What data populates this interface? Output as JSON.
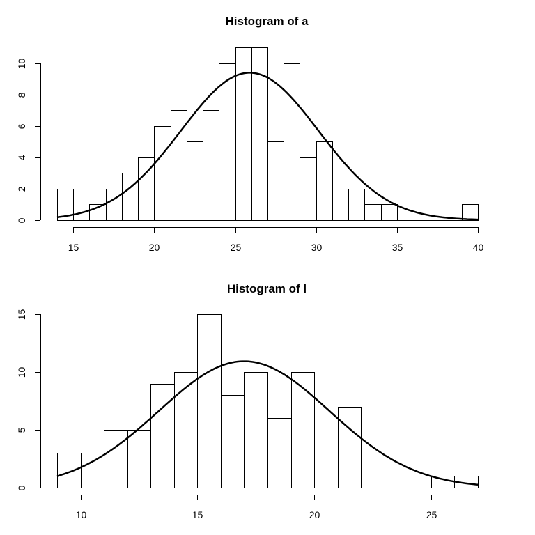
{
  "chart_data": [
    {
      "type": "histogram",
      "title": "Histogram of a",
      "xlabel": "",
      "ylabel": "",
      "bin_width": 1,
      "bins": [
        {
          "x0": 14,
          "x1": 15,
          "count": 2
        },
        {
          "x0": 15,
          "x1": 16,
          "count": 0
        },
        {
          "x0": 16,
          "x1": 17,
          "count": 1
        },
        {
          "x0": 17,
          "x1": 18,
          "count": 2
        },
        {
          "x0": 18,
          "x1": 19,
          "count": 3
        },
        {
          "x0": 19,
          "x1": 20,
          "count": 4
        },
        {
          "x0": 20,
          "x1": 21,
          "count": 6
        },
        {
          "x0": 21,
          "x1": 22,
          "count": 7
        },
        {
          "x0": 22,
          "x1": 23,
          "count": 5
        },
        {
          "x0": 23,
          "x1": 24,
          "count": 7
        },
        {
          "x0": 24,
          "x1": 25,
          "count": 10
        },
        {
          "x0": 25,
          "x1": 26,
          "count": 11
        },
        {
          "x0": 26,
          "x1": 27,
          "count": 11
        },
        {
          "x0": 27,
          "x1": 28,
          "count": 5
        },
        {
          "x0": 28,
          "x1": 29,
          "count": 10
        },
        {
          "x0": 29,
          "x1": 30,
          "count": 4
        },
        {
          "x0": 30,
          "x1": 31,
          "count": 5
        },
        {
          "x0": 31,
          "x1": 32,
          "count": 2
        },
        {
          "x0": 32,
          "x1": 33,
          "count": 2
        },
        {
          "x0": 33,
          "x1": 34,
          "count": 1
        },
        {
          "x0": 34,
          "x1": 35,
          "count": 1
        },
        {
          "x0": 35,
          "x1": 36,
          "count": 0
        },
        {
          "x0": 36,
          "x1": 37,
          "count": 0
        },
        {
          "x0": 37,
          "x1": 38,
          "count": 0
        },
        {
          "x0": 38,
          "x1": 39,
          "count": 0
        },
        {
          "x0": 39,
          "x1": 40,
          "count": 1
        }
      ],
      "density_curve": {
        "mean": 25.9,
        "sd": 4.25,
        "n": 100
      },
      "xlim": [
        14,
        40
      ],
      "ylim": [
        0,
        11
      ],
      "x_ticks": [
        15,
        20,
        25,
        30,
        35,
        40
      ],
      "y_ticks": [
        0,
        2,
        4,
        6,
        8,
        10
      ],
      "grid": false
    },
    {
      "type": "histogram",
      "title": "Histogram of l",
      "xlabel": "",
      "ylabel": "",
      "bin_width": 1,
      "bins": [
        {
          "x0": 9,
          "x1": 10,
          "count": 3
        },
        {
          "x0": 10,
          "x1": 11,
          "count": 3
        },
        {
          "x0": 11,
          "x1": 12,
          "count": 5
        },
        {
          "x0": 12,
          "x1": 13,
          "count": 5
        },
        {
          "x0": 13,
          "x1": 14,
          "count": 9
        },
        {
          "x0": 14,
          "x1": 15,
          "count": 10
        },
        {
          "x0": 15,
          "x1": 16,
          "count": 15
        },
        {
          "x0": 16,
          "x1": 17,
          "count": 8
        },
        {
          "x0": 17,
          "x1": 18,
          "count": 10
        },
        {
          "x0": 18,
          "x1": 19,
          "count": 6
        },
        {
          "x0": 19,
          "x1": 20,
          "count": 10
        },
        {
          "x0": 20,
          "x1": 21,
          "count": 4
        },
        {
          "x0": 21,
          "x1": 22,
          "count": 7
        },
        {
          "x0": 22,
          "x1": 23,
          "count": 1
        },
        {
          "x0": 23,
          "x1": 24,
          "count": 1
        },
        {
          "x0": 24,
          "x1": 25,
          "count": 1
        },
        {
          "x0": 25,
          "x1": 26,
          "count": 1
        },
        {
          "x0": 26,
          "x1": 27,
          "count": 1
        }
      ],
      "density_curve": {
        "mean": 17.0,
        "sd": 3.65,
        "n": 100
      },
      "xlim": [
        9,
        27
      ],
      "ylim": [
        0,
        15
      ],
      "x_ticks": [
        10,
        15,
        20,
        25
      ],
      "y_ticks": [
        0,
        5,
        10,
        15
      ],
      "grid": false
    }
  ]
}
